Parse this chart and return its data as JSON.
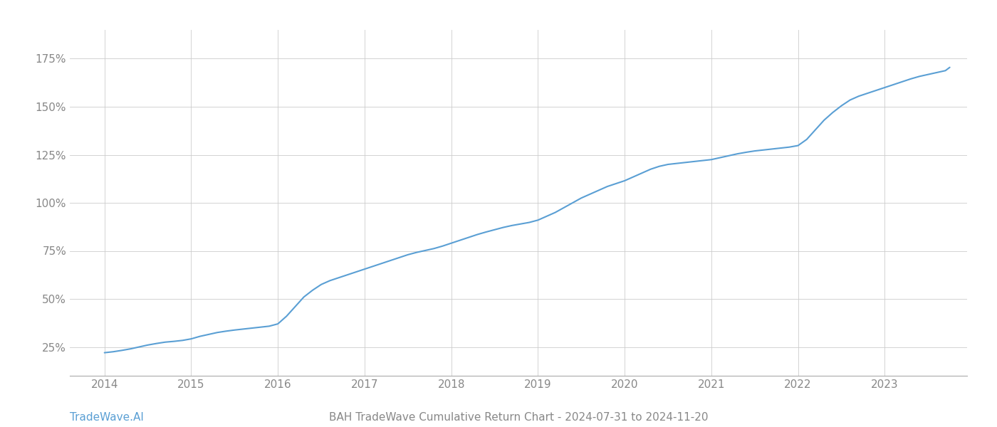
{
  "title": "BAH TradeWave Cumulative Return Chart - 2024-07-31 to 2024-11-20",
  "footnote_left": "TradeWave.AI",
  "line_color": "#5a9fd4",
  "background_color": "#ffffff",
  "grid_color": "#cccccc",
  "x_years": [
    2014,
    2015,
    2016,
    2017,
    2018,
    2019,
    2020,
    2021,
    2022,
    2023
  ],
  "data_x": [
    2014.0,
    2014.1,
    2014.2,
    2014.3,
    2014.4,
    2014.5,
    2014.6,
    2014.7,
    2014.8,
    2014.9,
    2015.0,
    2015.1,
    2015.2,
    2015.3,
    2015.4,
    2015.5,
    2015.6,
    2015.7,
    2015.8,
    2015.9,
    2016.0,
    2016.1,
    2016.2,
    2016.3,
    2016.4,
    2016.5,
    2016.6,
    2016.7,
    2016.8,
    2016.9,
    2017.0,
    2017.1,
    2017.2,
    2017.3,
    2017.4,
    2017.5,
    2017.6,
    2017.7,
    2017.8,
    2017.9,
    2018.0,
    2018.1,
    2018.2,
    2018.3,
    2018.4,
    2018.5,
    2018.6,
    2018.7,
    2018.8,
    2018.9,
    2019.0,
    2019.1,
    2019.2,
    2019.3,
    2019.4,
    2019.5,
    2019.6,
    2019.7,
    2019.8,
    2019.9,
    2020.0,
    2020.1,
    2020.2,
    2020.3,
    2020.4,
    2020.5,
    2020.6,
    2020.7,
    2020.8,
    2020.9,
    2021.0,
    2021.1,
    2021.2,
    2021.3,
    2021.4,
    2021.5,
    2021.6,
    2021.7,
    2021.8,
    2021.9,
    2022.0,
    2022.1,
    2022.2,
    2022.3,
    2022.4,
    2022.5,
    2022.6,
    2022.7,
    2022.8,
    2022.9,
    2023.0,
    2023.1,
    2023.2,
    2023.3,
    2023.4,
    2023.5,
    2023.6,
    2023.7,
    2023.75
  ],
  "data_y": [
    22.0,
    22.5,
    23.2,
    24.0,
    25.0,
    26.0,
    26.8,
    27.5,
    27.9,
    28.4,
    29.2,
    30.5,
    31.5,
    32.5,
    33.2,
    33.8,
    34.3,
    34.8,
    35.3,
    35.8,
    37.0,
    41.0,
    46.0,
    51.0,
    54.5,
    57.5,
    59.5,
    61.0,
    62.5,
    64.0,
    65.5,
    67.0,
    68.5,
    70.0,
    71.5,
    73.0,
    74.2,
    75.2,
    76.2,
    77.5,
    79.0,
    80.5,
    82.0,
    83.5,
    84.8,
    86.0,
    87.2,
    88.2,
    89.0,
    89.8,
    91.0,
    93.0,
    95.0,
    97.5,
    100.0,
    102.5,
    104.5,
    106.5,
    108.5,
    110.0,
    111.5,
    113.5,
    115.5,
    117.5,
    119.0,
    120.0,
    120.5,
    121.0,
    121.5,
    122.0,
    122.5,
    123.5,
    124.5,
    125.5,
    126.3,
    127.0,
    127.5,
    128.0,
    128.5,
    129.0,
    129.8,
    133.0,
    138.0,
    143.0,
    147.0,
    150.5,
    153.5,
    155.5,
    157.0,
    158.5,
    160.0,
    161.5,
    163.0,
    164.5,
    165.8,
    166.8,
    167.8,
    168.8,
    170.5
  ],
  "ylim": [
    10,
    190
  ],
  "yticks": [
    25,
    50,
    75,
    100,
    125,
    150,
    175
  ],
  "title_fontsize": 11,
  "tick_fontsize": 11,
  "footnote_fontsize": 11,
  "line_width": 1.5,
  "fig_width": 14.0,
  "fig_height": 6.0
}
